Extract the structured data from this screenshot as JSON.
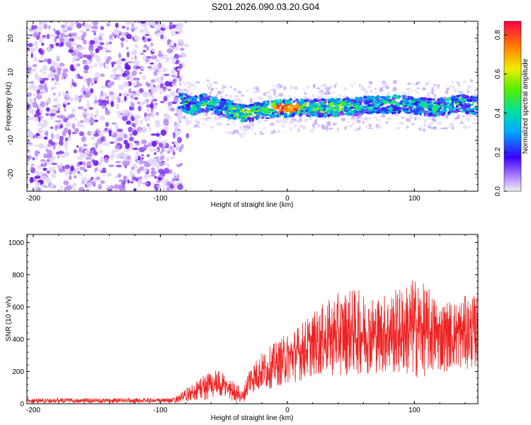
{
  "title": "S201.2026.090.03.20.G04",
  "chart_data": [
    {
      "type": "heatmap",
      "name": "spectrogram",
      "xlabel": "Height of straight line (km)",
      "ylabel": "Frequency (Hz)",
      "xlim": [
        -205,
        150
      ],
      "ylim": [
        -25,
        25
      ],
      "xticks": [
        -200,
        -100,
        0,
        100
      ],
      "yticks": [
        -20,
        -10,
        0,
        10,
        20
      ],
      "noise_region_x": [
        -205,
        -82
      ],
      "signal_track": {
        "x": [
          -85,
          -75,
          -65,
          -55,
          -45,
          -35,
          -25,
          -15,
          -5,
          5,
          15,
          25,
          35,
          45,
          55,
          65,
          75,
          85,
          95,
          105,
          115,
          125,
          135,
          145,
          150
        ],
        "y": [
          2,
          0,
          1,
          0,
          -1,
          -2,
          -1.5,
          -1,
          -0.5,
          -0.5,
          -0.5,
          -0.5,
          -0.5,
          0,
          0,
          0.5,
          0.5,
          0.5,
          0.5,
          0,
          -0.5,
          0,
          1,
          0.5,
          0
        ]
      },
      "peak_region_x": [
        -10,
        10
      ],
      "colorbar": {
        "label": "Normalized spectral amplitude",
        "ticks": [
          0.0,
          0.2,
          0.4,
          0.6,
          0.8
        ],
        "range": [
          0,
          0.87
        ]
      }
    },
    {
      "type": "line",
      "name": "snr",
      "xlabel": "Height of straight line (km)",
      "ylabel": "SNR (10 * v/v)",
      "xlim": [
        -205,
        150
      ],
      "ylim": [
        0,
        1050
      ],
      "xticks": [
        -200,
        -100,
        0,
        100
      ],
      "yticks": [
        0,
        200,
        400,
        600,
        800,
        1000
      ],
      "color": "#ee2222",
      "envelope": {
        "x": [
          -205,
          -90,
          -80,
          -70,
          -60,
          -50,
          -40,
          -35,
          -30,
          -20,
          -10,
          0,
          10,
          20,
          30,
          40,
          50,
          60,
          70,
          80,
          90,
          100,
          110,
          120,
          130,
          140,
          150
        ],
        "mean": [
          20,
          20,
          50,
          90,
          120,
          110,
          70,
          40,
          150,
          200,
          240,
          280,
          320,
          370,
          400,
          430,
          450,
          440,
          430,
          440,
          450,
          470,
          450,
          420,
          430,
          440,
          450
        ],
        "amp": [
          15,
          15,
          40,
          70,
          100,
          80,
          60,
          40,
          90,
          120,
          140,
          160,
          180,
          200,
          230,
          260,
          270,
          260,
          240,
          260,
          280,
          320,
          280,
          230,
          220,
          230,
          230
        ]
      }
    }
  ]
}
